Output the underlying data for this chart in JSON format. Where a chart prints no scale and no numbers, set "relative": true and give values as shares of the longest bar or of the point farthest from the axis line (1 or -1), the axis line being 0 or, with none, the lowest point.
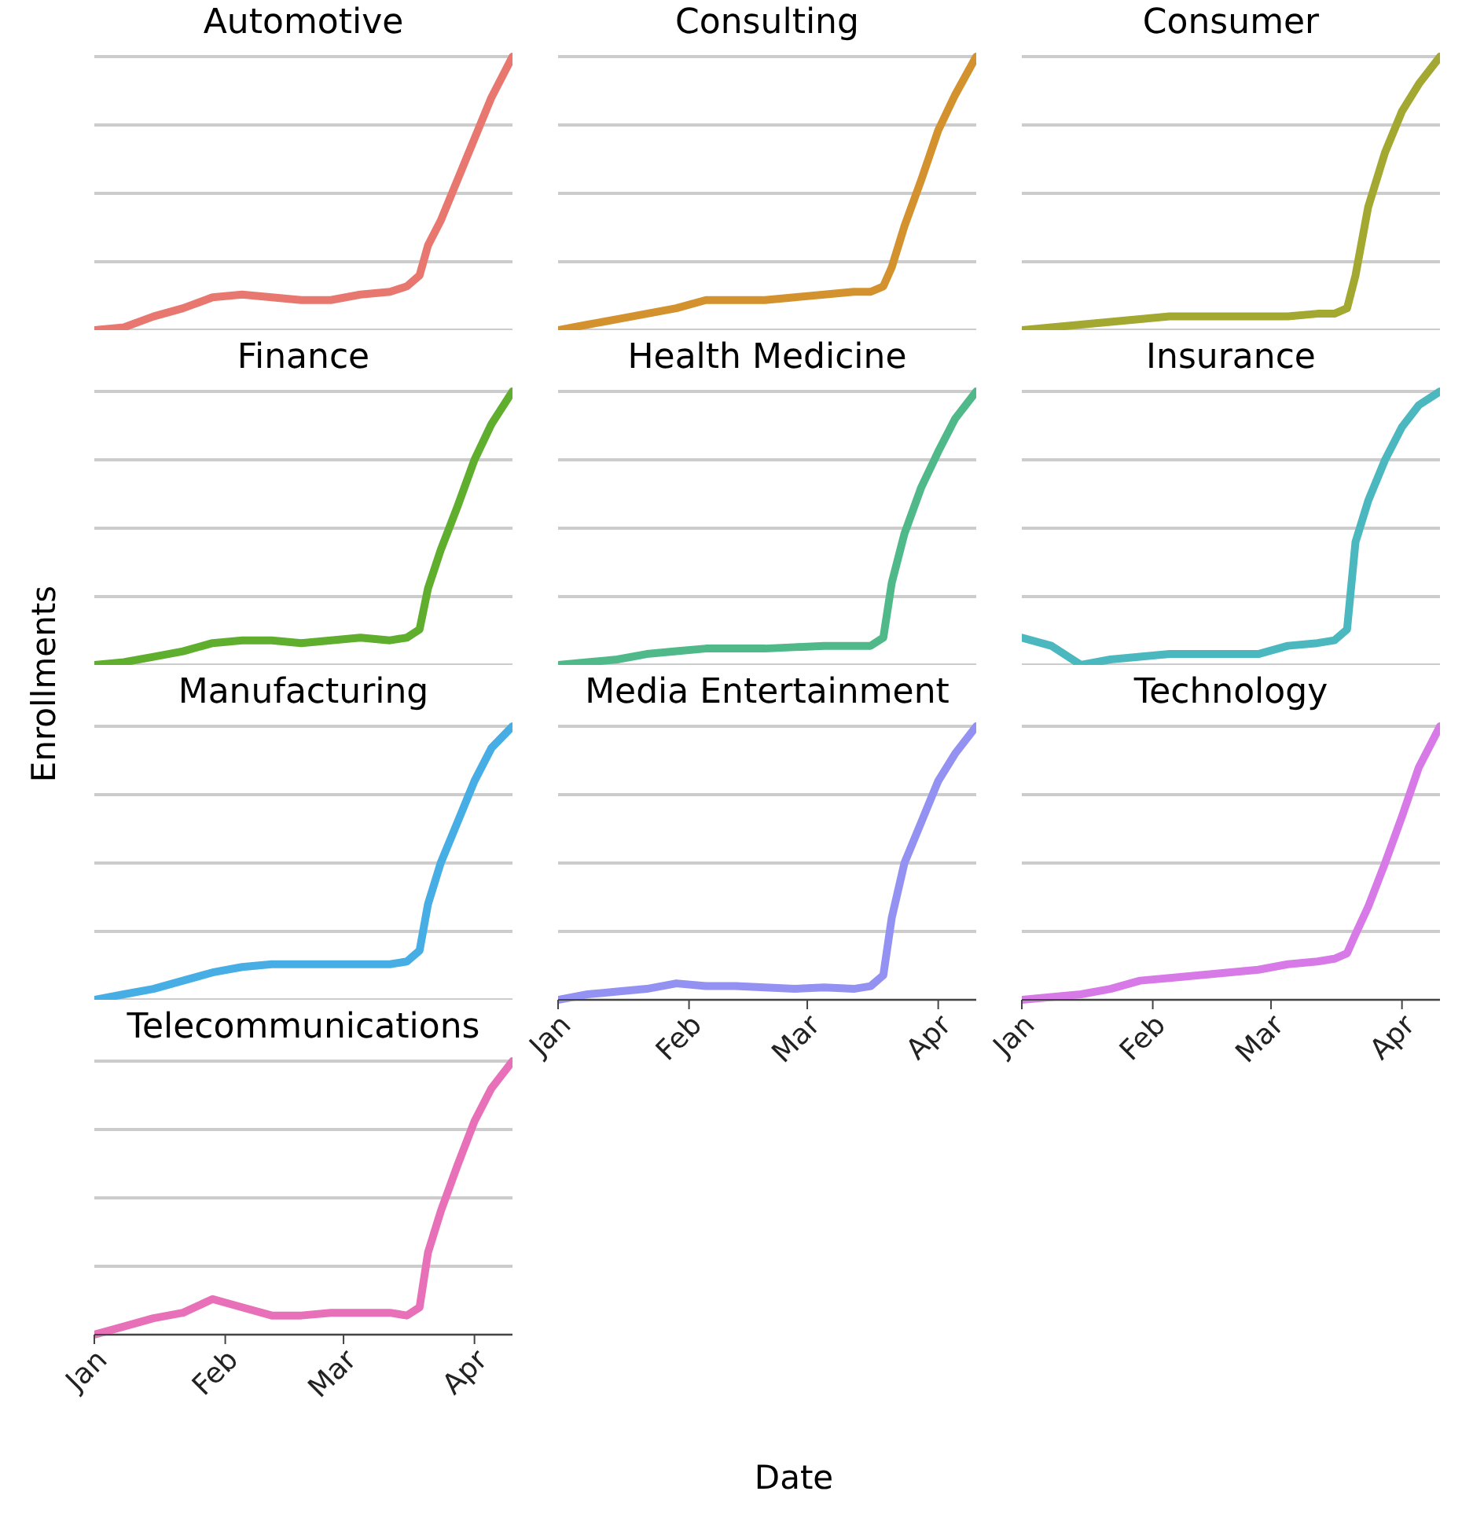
{
  "chart_data": [
    {
      "type": "line",
      "title": "Automotive",
      "relative": true,
      "grid": "y",
      "tick_labels": false,
      "line_style": "solid",
      "color": "#e8786f",
      "x": [
        "--01-01",
        "--01-08",
        "--01-15",
        "--01-22",
        "--01-29",
        "--02-05",
        "--02-12",
        "--02-19",
        "--02-26",
        "--03-05",
        "--03-12",
        "--03-16",
        "--03-19",
        "--03-21",
        "--03-24",
        "--03-28",
        "--04-01",
        "--04-05",
        "--04-10"
      ],
      "values": [
        0,
        0.01,
        0.05,
        0.08,
        0.12,
        0.13,
        0.12,
        0.11,
        0.11,
        0.13,
        0.14,
        0.16,
        0.2,
        0.31,
        0.4,
        0.55,
        0.7,
        0.85,
        1
      ],
      "xlim": [
        "--01-01",
        "--04-10"
      ]
    },
    {
      "type": "line",
      "title": "Consulting",
      "relative": true,
      "grid": "y",
      "tick_labels": false,
      "line_style": "solid",
      "color": "#d3922d",
      "x": [
        "--01-01",
        "--01-08",
        "--01-15",
        "--01-22",
        "--01-29",
        "--02-05",
        "--02-12",
        "--02-19",
        "--02-26",
        "--03-05",
        "--03-12",
        "--03-16",
        "--03-19",
        "--03-21",
        "--03-24",
        "--03-28",
        "--04-01",
        "--04-05",
        "--04-10"
      ],
      "values": [
        0,
        0.02,
        0.04,
        0.06,
        0.08,
        0.11,
        0.11,
        0.11,
        0.12,
        0.13,
        0.14,
        0.14,
        0.16,
        0.23,
        0.38,
        0.55,
        0.73,
        0.86,
        1
      ],
      "xlim": [
        "--01-01",
        "--04-10"
      ]
    },
    {
      "type": "line",
      "title": "Consumer",
      "relative": true,
      "grid": "y",
      "tick_labels": false,
      "line_style": "solid",
      "color": "#a2a830",
      "x": [
        "--01-01",
        "--01-08",
        "--01-15",
        "--01-22",
        "--01-29",
        "--02-05",
        "--02-12",
        "--02-19",
        "--02-26",
        "--03-05",
        "--03-12",
        "--03-16",
        "--03-19",
        "--03-21",
        "--03-24",
        "--03-28",
        "--04-01",
        "--04-05",
        "--04-10"
      ],
      "values": [
        0,
        0.01,
        0.02,
        0.03,
        0.04,
        0.05,
        0.05,
        0.05,
        0.05,
        0.05,
        0.06,
        0.06,
        0.08,
        0.2,
        0.45,
        0.65,
        0.8,
        0.9,
        1
      ],
      "xlim": [
        "--01-01",
        "--04-10"
      ]
    },
    {
      "type": "line",
      "title": "Finance",
      "ylabel": "Enrollments",
      "relative": true,
      "grid": "y",
      "tick_labels": false,
      "line_style": "solid",
      "color": "#5fae2e",
      "x": [
        "--01-01",
        "--01-08",
        "--01-15",
        "--01-22",
        "--01-29",
        "--02-05",
        "--02-12",
        "--02-19",
        "--02-26",
        "--03-05",
        "--03-12",
        "--03-16",
        "--03-19",
        "--03-21",
        "--03-24",
        "--03-28",
        "--04-01",
        "--04-05",
        "--04-10"
      ],
      "values": [
        0,
        0.01,
        0.03,
        0.05,
        0.08,
        0.09,
        0.09,
        0.08,
        0.09,
        0.1,
        0.09,
        0.1,
        0.13,
        0.28,
        0.42,
        0.58,
        0.75,
        0.88,
        1
      ],
      "xlim": [
        "--01-01",
        "--04-10"
      ]
    },
    {
      "type": "line",
      "title": "Health Medicine",
      "relative": true,
      "grid": "y",
      "tick_labels": false,
      "line_style": "solid",
      "color": "#50b98a",
      "x": [
        "--01-01",
        "--01-08",
        "--01-15",
        "--01-22",
        "--01-29",
        "--02-05",
        "--02-12",
        "--02-19",
        "--02-26",
        "--03-05",
        "--03-12",
        "--03-16",
        "--03-19",
        "--03-21",
        "--03-24",
        "--03-28",
        "--04-01",
        "--04-05",
        "--04-10"
      ],
      "values": [
        0,
        0.01,
        0.02,
        0.04,
        0.05,
        0.06,
        0.06,
        0.06,
        0.065,
        0.07,
        0.07,
        0.07,
        0.1,
        0.3,
        0.48,
        0.65,
        0.78,
        0.9,
        1
      ],
      "xlim": [
        "--01-01",
        "--04-10"
      ]
    },
    {
      "type": "line",
      "title": "Insurance",
      "relative": true,
      "grid": "y",
      "tick_labels": false,
      "line_style": "solid",
      "color": "#4bb8c0",
      "x": [
        "--01-01",
        "--01-08",
        "--01-15",
        "--01-22",
        "--01-29",
        "--02-05",
        "--02-12",
        "--02-19",
        "--02-26",
        "--03-05",
        "--03-12",
        "--03-16",
        "--03-19",
        "--03-21",
        "--03-24",
        "--03-28",
        "--04-01",
        "--04-05",
        "--04-10"
      ],
      "values": [
        0.1,
        0.07,
        0,
        0.02,
        0.03,
        0.04,
        0.04,
        0.04,
        0.04,
        0.07,
        0.08,
        0.09,
        0.13,
        0.45,
        0.6,
        0.75,
        0.87,
        0.95,
        1
      ],
      "xlim": [
        "--01-01",
        "--04-10"
      ]
    },
    {
      "type": "line",
      "title": "Manufacturing",
      "relative": true,
      "grid": "y",
      "tick_labels": false,
      "line_style": "solid",
      "color": "#46aee5",
      "x": [
        "--01-01",
        "--01-08",
        "--01-15",
        "--01-22",
        "--01-29",
        "--02-05",
        "--02-12",
        "--02-19",
        "--02-26",
        "--03-05",
        "--03-12",
        "--03-16",
        "--03-19",
        "--03-21",
        "--03-24",
        "--03-28",
        "--04-01",
        "--04-05",
        "--04-10"
      ],
      "values": [
        0,
        0.02,
        0.04,
        0.07,
        0.1,
        0.12,
        0.13,
        0.13,
        0.13,
        0.13,
        0.13,
        0.14,
        0.18,
        0.35,
        0.5,
        0.65,
        0.8,
        0.92,
        1
      ],
      "xlim": [
        "--01-01",
        "--04-10"
      ]
    },
    {
      "type": "line",
      "title": "Media Entertainment",
      "xlabel": "Date",
      "relative": true,
      "grid": "y",
      "tick_labels": "x",
      "line_style": "solid",
      "color": "#9392f2",
      "x": [
        "--01-01",
        "--01-08",
        "--01-15",
        "--01-22",
        "--01-29",
        "--02-05",
        "--02-12",
        "--02-19",
        "--02-26",
        "--03-05",
        "--03-12",
        "--03-16",
        "--03-19",
        "--03-21",
        "--03-24",
        "--03-28",
        "--04-01",
        "--04-05",
        "--04-10"
      ],
      "values": [
        0,
        0.02,
        0.03,
        0.04,
        0.06,
        0.05,
        0.05,
        0.045,
        0.04,
        0.045,
        0.04,
        0.05,
        0.09,
        0.3,
        0.5,
        0.65,
        0.8,
        0.9,
        1
      ],
      "xlim": [
        "--01-01",
        "--04-10"
      ],
      "xticks": [
        {
          "value": "--01-01",
          "label": "Jan"
        },
        {
          "value": "--02-01",
          "label": "Feb"
        },
        {
          "value": "--03-01",
          "label": "Mar"
        },
        {
          "value": "--04-01",
          "label": "Apr"
        }
      ]
    },
    {
      "type": "line",
      "title": "Technology",
      "relative": true,
      "grid": "y",
      "tick_labels": "x",
      "line_style": "solid",
      "color": "#d77ae8",
      "x": [
        "--01-01",
        "--01-08",
        "--01-15",
        "--01-22",
        "--01-29",
        "--02-05",
        "--02-12",
        "--02-19",
        "--02-26",
        "--03-05",
        "--03-12",
        "--03-16",
        "--03-19",
        "--03-21",
        "--03-24",
        "--03-28",
        "--04-01",
        "--04-05",
        "--04-10"
      ],
      "values": [
        0,
        0.01,
        0.02,
        0.04,
        0.07,
        0.08,
        0.09,
        0.1,
        0.11,
        0.13,
        0.14,
        0.15,
        0.17,
        0.24,
        0.34,
        0.5,
        0.67,
        0.85,
        1
      ],
      "xlim": [
        "--01-01",
        "--04-10"
      ],
      "xticks": [
        {
          "value": "--01-01",
          "label": "Jan"
        },
        {
          "value": "--02-01",
          "label": "Feb"
        },
        {
          "value": "--03-01",
          "label": "Mar"
        },
        {
          "value": "--04-01",
          "label": "Apr"
        }
      ]
    },
    {
      "type": "line",
      "title": "Telecommunications",
      "relative": true,
      "grid": "y",
      "tick_labels": "x",
      "line_style": "solid",
      "color": "#e870b8",
      "x": [
        "--01-01",
        "--01-08",
        "--01-15",
        "--01-22",
        "--01-29",
        "--02-05",
        "--02-12",
        "--02-19",
        "--02-26",
        "--03-05",
        "--03-12",
        "--03-16",
        "--03-19",
        "--03-21",
        "--03-24",
        "--03-28",
        "--04-01",
        "--04-05",
        "--04-10"
      ],
      "values": [
        0,
        0.03,
        0.06,
        0.08,
        0.13,
        0.1,
        0.07,
        0.07,
        0.08,
        0.08,
        0.08,
        0.07,
        0.1,
        0.3,
        0.45,
        0.62,
        0.78,
        0.9,
        1
      ],
      "xlim": [
        "--01-01",
        "--04-10"
      ],
      "xticks": [
        {
          "value": "--01-01",
          "label": "Jan"
        },
        {
          "value": "--02-01",
          "label": "Feb"
        },
        {
          "value": "--03-01",
          "label": "Mar"
        },
        {
          "value": "--04-01",
          "label": "Apr"
        }
      ]
    }
  ]
}
